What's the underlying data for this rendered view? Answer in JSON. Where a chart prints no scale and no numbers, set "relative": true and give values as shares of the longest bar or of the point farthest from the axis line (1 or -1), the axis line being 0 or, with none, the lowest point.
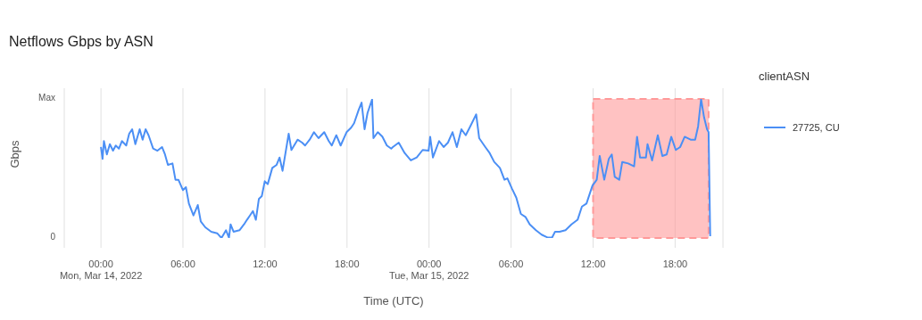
{
  "chart_data": {
    "type": "line",
    "title": "Netflows Gbps by ASN",
    "xlabel": "Time (UTC)",
    "ylabel": "Gbps",
    "legend_title": "clientASN",
    "annotations": [
      "Max",
      "0"
    ],
    "x": [
      "2022-03-14T00:00",
      "2022-03-14T00:07",
      "2022-03-14T00:13",
      "2022-03-14T00:26",
      "2022-03-14T00:39",
      "2022-03-14T00:53",
      "2022-03-14T01:05",
      "2022-03-14T01:19",
      "2022-03-14T01:32",
      "2022-03-14T01:51",
      "2022-03-14T02:04",
      "2022-03-14T02:17",
      "2022-03-14T02:31",
      "2022-03-14T02:50",
      "2022-03-14T03:03",
      "2022-03-14T03:16",
      "2022-03-14T03:29",
      "2022-03-14T03:49",
      "2022-03-14T04:08",
      "2022-03-14T04:28",
      "2022-03-14T04:41",
      "2022-03-14T04:54",
      "2022-03-14T05:14",
      "2022-03-14T05:27",
      "2022-03-14T05:40",
      "2022-03-14T06:00",
      "2022-03-14T06:13",
      "2022-03-14T06:26",
      "2022-03-14T06:46",
      "2022-03-14T07:05",
      "2022-03-14T07:18",
      "2022-03-14T07:38",
      "2022-03-14T08:04",
      "2022-03-14T08:30",
      "2022-03-14T08:49",
      "2022-03-14T09:09",
      "2022-03-14T09:22",
      "2022-03-14T09:29",
      "2022-03-14T09:42",
      "2022-03-14T10:08",
      "2022-03-14T10:28",
      "2022-03-14T10:41",
      "2022-03-14T10:54",
      "2022-03-14T11:07",
      "2022-03-14T11:20",
      "2022-03-14T11:33",
      "2022-03-14T11:46",
      "2022-03-14T11:59",
      "2022-03-14T12:12",
      "2022-03-14T12:32",
      "2022-03-14T12:51",
      "2022-03-14T13:04",
      "2022-03-14T13:17",
      "2022-03-14T13:44",
      "2022-03-14T13:56",
      "2022-03-14T14:23",
      "2022-03-14T14:43",
      "2022-03-14T14:56",
      "2022-03-14T15:16",
      "2022-03-14T15:35",
      "2022-03-14T15:55",
      "2022-03-14T16:20",
      "2022-03-14T16:40",
      "2022-03-14T16:53",
      "2022-03-14T17:13",
      "2022-03-14T17:32",
      "2022-03-14T17:58",
      "2022-03-14T18:18",
      "2022-03-14T18:31",
      "2022-03-14T18:51",
      "2022-03-14T19:04",
      "2022-03-14T19:17",
      "2022-03-14T19:30",
      "2022-03-14T19:50",
      "2022-03-14T19:56",
      "2022-03-14T20:15",
      "2022-03-14T20:35",
      "2022-03-14T20:55",
      "2022-03-14T21:14",
      "2022-03-14T21:21",
      "2022-03-14T21:47",
      "2022-03-14T22:13",
      "2022-03-14T22:40",
      "2022-03-14T23:06",
      "2022-03-14T23:32",
      "2022-03-14T23:58",
      "2022-03-15T00:05",
      "2022-03-15T00:17",
      "2022-03-15T00:44",
      "2022-03-15T01:04",
      "2022-03-15T01:23",
      "2022-03-15T01:43",
      "2022-03-15T02:02",
      "2022-03-15T02:22",
      "2022-03-15T02:41",
      "2022-03-15T03:01",
      "2022-03-15T03:27",
      "2022-03-15T03:40",
      "2022-03-15T04:07",
      "2022-03-15T04:26",
      "2022-03-15T04:46",
      "2022-03-15T05:11",
      "2022-03-15T05:31",
      "2022-03-15T05:44",
      "2022-03-15T06:04",
      "2022-03-15T06:23",
      "2022-03-15T06:43",
      "2022-03-15T07:03",
      "2022-03-15T07:22",
      "2022-03-15T07:49",
      "2022-03-15T08:14",
      "2022-03-15T08:41",
      "2022-03-15T09:00",
      "2022-03-15T09:13",
      "2022-03-15T09:33",
      "2022-03-15T09:59",
      "2022-03-15T10:25",
      "2022-03-15T10:52",
      "2022-03-15T11:11",
      "2022-03-15T11:31",
      "2022-03-15T11:57",
      "2022-03-15T12:16",
      "2022-03-15T12:29",
      "2022-03-15T12:49",
      "2022-03-15T13:09",
      "2022-03-15T13:22",
      "2022-03-15T13:35",
      "2022-03-15T13:55",
      "2022-03-15T14:08",
      "2022-03-15T14:34",
      "2022-03-15T15:00",
      "2022-03-15T15:13",
      "2022-03-15T15:26",
      "2022-03-15T15:52",
      "2022-03-15T15:59",
      "2022-03-15T16:19",
      "2022-03-15T16:44",
      "2022-03-15T17:04",
      "2022-03-15T17:23",
      "2022-03-15T17:43",
      "2022-03-15T18:03",
      "2022-03-15T18:22",
      "2022-03-15T18:42",
      "2022-03-15T19:08",
      "2022-03-15T19:28",
      "2022-03-15T19:41",
      "2022-03-15T19:54",
      "2022-03-15T20:07",
      "2022-03-15T20:20",
      "2022-03-15T20:27",
      "2022-03-15T20:34"
    ],
    "series": [
      {
        "name": "27725, CU",
        "color": "#4b8ff5",
        "values": [
          0.654,
          0.569,
          0.697,
          0.601,
          0.675,
          0.628,
          0.665,
          0.643,
          0.697,
          0.665,
          0.75,
          0.782,
          0.675,
          0.782,
          0.707,
          0.782,
          0.739,
          0.643,
          0.628,
          0.654,
          0.601,
          0.526,
          0.536,
          0.419,
          0.419,
          0.344,
          0.365,
          0.248,
          0.162,
          0.237,
          0.12,
          0.077,
          0.045,
          0.034,
          0,
          0.056,
          0.002,
          0.098,
          0.045,
          0.056,
          0.098,
          0.131,
          0.162,
          0.194,
          0.131,
          0.28,
          0.301,
          0.408,
          0.387,
          0.504,
          0.526,
          0.579,
          0.483,
          0.75,
          0.633,
          0.707,
          0.686,
          0.665,
          0.707,
          0.761,
          0.718,
          0.761,
          0.697,
          0.665,
          0.739,
          0.665,
          0.761,
          0.793,
          0.825,
          0.921,
          0.974,
          0.782,
          0.899,
          0.996,
          0.718,
          0.761,
          0.729,
          0.665,
          0.643,
          0.654,
          0.686,
          0.611,
          0.558,
          0.579,
          0.633,
          0.628,
          0.728,
          0.579,
          0.697,
          0.654,
          0.686,
          0.761,
          0.654,
          0.782,
          0.739,
          0.803,
          0.889,
          0.718,
          0.654,
          0.611,
          0.547,
          0.504,
          0.419,
          0.429,
          0.355,
          0.29,
          0.173,
          0.152,
          0.098,
          0.056,
          0.024,
          0.003,
          0.003,
          0.045,
          0.045,
          0.056,
          0.098,
          0.131,
          0.226,
          0.248,
          0.376,
          0.419,
          0.59,
          0.419,
          0.569,
          0.601,
          0.44,
          0.419,
          0.547,
          0.536,
          0.515,
          0.728,
          0.579,
          0.579,
          0.675,
          0.558,
          0.739,
          0.59,
          0.601,
          0.728,
          0.633,
          0.654,
          0.728,
          0.707,
          0.707,
          0.803,
          1,
          0.868,
          0.782,
          0.761,
          0.013
        ]
      }
    ],
    "relative": true,
    "xlim": [
      "2022-03-13T21:19",
      "2022-03-15T21:30"
    ],
    "xticks": [
      {
        "value": "2022-03-14T00:00",
        "label": "00:00\nMon, Mar 14, 2022"
      },
      {
        "value": "2022-03-14T06:00",
        "label": "06:00"
      },
      {
        "value": "2022-03-14T12:00",
        "label": "12:00"
      },
      {
        "value": "2022-03-14T18:00",
        "label": "18:00"
      },
      {
        "value": "2022-03-15T00:00",
        "label": "00:00\nTue, Mar 15, 2022"
      },
      {
        "value": "2022-03-15T06:00",
        "label": "06:00"
      },
      {
        "value": "2022-03-15T12:00",
        "label": "12:00"
      },
      {
        "value": "2022-03-15T18:00",
        "label": "18:00"
      }
    ],
    "bands": [
      {
        "axis": "x",
        "from": "2022-03-15T12:00",
        "to": "2022-03-15T20:27",
        "color": "#ff9999"
      }
    ],
    "grid": "x",
    "legend": "right",
    "marker": "none",
    "line_style": "solid"
  }
}
